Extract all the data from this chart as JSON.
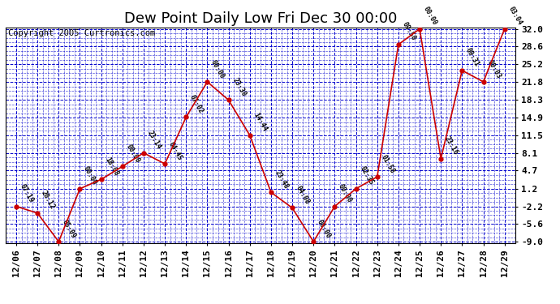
{
  "title": "Dew Point Daily Low Fri Dec 30 00:00",
  "copyright": "Copyright 2005 Curtronics.com",
  "x_labels": [
    "12/06",
    "12/07",
    "12/08",
    "12/09",
    "12/10",
    "12/11",
    "12/12",
    "12/13",
    "12/14",
    "12/15",
    "12/16",
    "12/17",
    "12/18",
    "12/19",
    "12/20",
    "12/21",
    "12/22",
    "12/23",
    "12/24",
    "12/25",
    "12/26",
    "12/27",
    "12/28",
    "12/29"
  ],
  "y_values": [
    -2.2,
    -3.5,
    -9.0,
    1.2,
    3.0,
    5.5,
    8.1,
    6.0,
    15.0,
    21.8,
    18.3,
    11.5,
    0.5,
    -2.5,
    -9.0,
    -2.2,
    1.2,
    3.5,
    29.0,
    32.0,
    7.0,
    24.0,
    21.8,
    32.0
  ],
  "point_labels": [
    "07:19",
    "20:12",
    "05:09",
    "00:00",
    "18:08",
    "00:00",
    "23:14",
    "04:45",
    "07:02",
    "00:00",
    "23:30",
    "14:44",
    "23:48",
    "04:08",
    "00:00",
    "00:00",
    "02:35",
    "01:58",
    "09:50",
    "00:00",
    "23:16",
    "09:31",
    "00:03",
    "03:04"
  ],
  "y_ticks": [
    -9.0,
    -5.6,
    -2.2,
    1.2,
    4.7,
    8.1,
    11.5,
    14.9,
    18.3,
    21.8,
    25.2,
    28.6,
    32.0
  ],
  "line_color": "#cc0000",
  "marker_color": "#cc0000",
  "grid_color": "#0000cc",
  "bg_color": "#ffffff",
  "title_fontsize": 13,
  "tick_fontsize": 8,
  "copyright_fontsize": 7.5
}
